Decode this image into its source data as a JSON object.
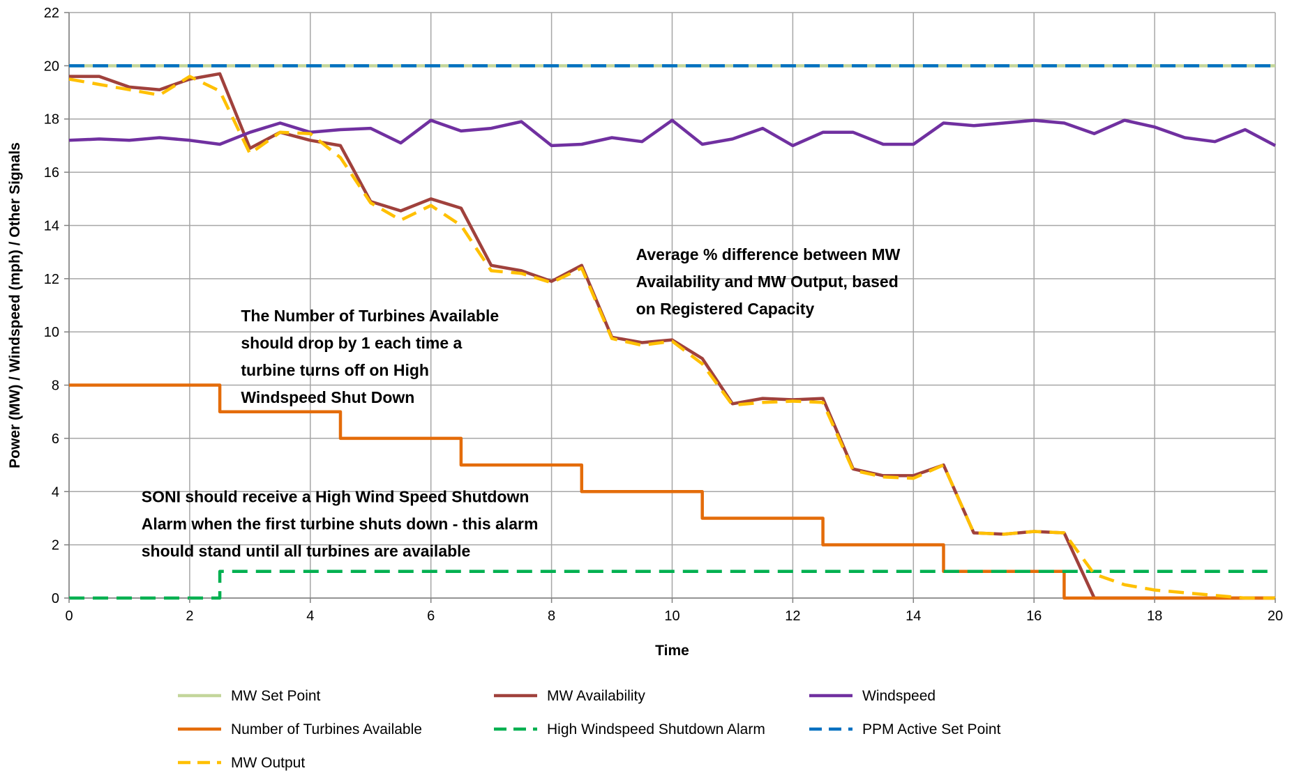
{
  "chart_data": {
    "type": "line",
    "title": "",
    "xlabel": "Time",
    "ylabel": "Power (MW) / Windspeed (mph) / Other Signals",
    "xlim": [
      0,
      20
    ],
    "ylim": [
      0,
      22
    ],
    "xticks": [
      0,
      2,
      4,
      6,
      8,
      10,
      12,
      14,
      16,
      18,
      20
    ],
    "yticks": [
      0,
      2,
      4,
      6,
      8,
      10,
      12,
      14,
      16,
      18,
      20,
      22
    ],
    "grid": true,
    "legend_position": "bottom",
    "series": [
      {
        "name": "MW Set Point",
        "color": "#c3d69b",
        "dash": "solid",
        "points": [
          [
            0,
            20
          ],
          [
            20,
            20
          ]
        ]
      },
      {
        "name": "MW Availability",
        "color": "#a0413c",
        "dash": "solid",
        "points": [
          [
            0,
            19.6
          ],
          [
            0.5,
            19.6
          ],
          [
            1,
            19.2
          ],
          [
            1.5,
            19.1
          ],
          [
            2,
            19.5
          ],
          [
            2.5,
            19.7
          ],
          [
            3,
            16.9
          ],
          [
            3.5,
            17.5
          ],
          [
            4,
            17.2
          ],
          [
            4.5,
            17.0
          ],
          [
            5,
            14.9
          ],
          [
            5.5,
            14.55
          ],
          [
            6,
            15.0
          ],
          [
            6.5,
            14.65
          ],
          [
            7,
            12.5
          ],
          [
            7.5,
            12.3
          ],
          [
            8,
            11.9
          ],
          [
            8.5,
            12.5
          ],
          [
            9,
            9.8
          ],
          [
            9.5,
            9.6
          ],
          [
            10,
            9.7
          ],
          [
            10.5,
            9.0
          ],
          [
            11,
            7.3
          ],
          [
            11.5,
            7.5
          ],
          [
            12,
            7.45
          ],
          [
            12.5,
            7.5
          ],
          [
            13,
            4.85
          ],
          [
            13.5,
            4.6
          ],
          [
            14,
            4.6
          ],
          [
            14.5,
            5.0
          ],
          [
            15,
            2.45
          ],
          [
            15.5,
            2.4
          ],
          [
            16,
            2.5
          ],
          [
            16.5,
            2.45
          ],
          [
            17,
            0.0
          ],
          [
            18,
            0.0
          ],
          [
            19,
            0.0
          ],
          [
            20,
            0.0
          ]
        ]
      },
      {
        "name": "Windspeed",
        "color": "#7030a0",
        "dash": "solid",
        "points": [
          [
            0,
            17.2
          ],
          [
            0.5,
            17.25
          ],
          [
            1,
            17.2
          ],
          [
            1.5,
            17.3
          ],
          [
            2,
            17.2
          ],
          [
            2.5,
            17.05
          ],
          [
            3,
            17.5
          ],
          [
            3.5,
            17.85
          ],
          [
            4,
            17.5
          ],
          [
            4.5,
            17.6
          ],
          [
            5,
            17.65
          ],
          [
            5.5,
            17.1
          ],
          [
            6,
            17.95
          ],
          [
            6.5,
            17.55
          ],
          [
            7,
            17.65
          ],
          [
            7.5,
            17.9
          ],
          [
            8,
            17.0
          ],
          [
            8.5,
            17.05
          ],
          [
            9,
            17.3
          ],
          [
            9.5,
            17.15
          ],
          [
            10,
            17.95
          ],
          [
            10.5,
            17.05
          ],
          [
            11,
            17.25
          ],
          [
            11.5,
            17.65
          ],
          [
            12,
            17.0
          ],
          [
            12.5,
            17.5
          ],
          [
            13,
            17.5
          ],
          [
            13.5,
            17.05
          ],
          [
            14,
            17.05
          ],
          [
            14.5,
            17.85
          ],
          [
            15,
            17.75
          ],
          [
            15.5,
            17.85
          ],
          [
            16,
            17.95
          ],
          [
            16.5,
            17.85
          ],
          [
            17,
            17.45
          ],
          [
            17.5,
            17.95
          ],
          [
            18,
            17.7
          ],
          [
            18.5,
            17.3
          ],
          [
            19,
            17.15
          ],
          [
            19.5,
            17.6
          ],
          [
            20,
            17.0
          ]
        ]
      },
      {
        "name": "Number of Turbines Available",
        "color": "#e46c0a",
        "dash": "solid",
        "step": true,
        "points": [
          [
            0,
            8
          ],
          [
            2.5,
            8
          ],
          [
            2.5,
            7
          ],
          [
            4.5,
            7
          ],
          [
            4.5,
            6
          ],
          [
            6.5,
            6
          ],
          [
            6.5,
            5
          ],
          [
            8.5,
            5
          ],
          [
            8.5,
            4
          ],
          [
            10.5,
            4
          ],
          [
            10.5,
            3
          ],
          [
            12.5,
            3
          ],
          [
            12.5,
            2
          ],
          [
            14.5,
            2
          ],
          [
            14.5,
            1
          ],
          [
            16.5,
            1
          ],
          [
            16.5,
            0
          ],
          [
            20,
            0
          ]
        ]
      },
      {
        "name": "High Windspeed Shutdown Alarm",
        "color": "#00b050",
        "dash": "dashed",
        "step": true,
        "points": [
          [
            0,
            0
          ],
          [
            2.5,
            0
          ],
          [
            2.5,
            1
          ],
          [
            20,
            1
          ]
        ]
      },
      {
        "name": "PPM Active Set Point",
        "color": "#0070c0",
        "dash": "dashed",
        "points": [
          [
            0,
            20
          ],
          [
            20,
            20
          ]
        ]
      },
      {
        "name": "MW Output",
        "color": "#ffc000",
        "dash": "dashed",
        "points": [
          [
            0,
            19.5
          ],
          [
            0.5,
            19.3
          ],
          [
            1,
            19.1
          ],
          [
            1.5,
            18.9
          ],
          [
            2,
            19.6
          ],
          [
            2.5,
            19.05
          ],
          [
            3,
            16.7
          ],
          [
            3.5,
            17.5
          ],
          [
            4,
            17.45
          ],
          [
            4.5,
            16.55
          ],
          [
            5,
            14.85
          ],
          [
            5.5,
            14.2
          ],
          [
            6,
            14.75
          ],
          [
            6.5,
            14.0
          ],
          [
            7,
            12.3
          ],
          [
            7.5,
            12.2
          ],
          [
            8,
            11.85
          ],
          [
            8.5,
            12.4
          ],
          [
            9,
            9.75
          ],
          [
            9.5,
            9.5
          ],
          [
            10,
            9.65
          ],
          [
            10.5,
            8.8
          ],
          [
            11,
            7.25
          ],
          [
            11.5,
            7.35
          ],
          [
            12,
            7.4
          ],
          [
            12.5,
            7.35
          ],
          [
            13,
            4.8
          ],
          [
            13.5,
            4.55
          ],
          [
            14,
            4.5
          ],
          [
            14.5,
            5.0
          ],
          [
            15,
            2.45
          ],
          [
            15.5,
            2.4
          ],
          [
            16,
            2.5
          ],
          [
            16.5,
            2.45
          ],
          [
            17,
            0.9
          ],
          [
            17.5,
            0.5
          ],
          [
            18,
            0.3
          ],
          [
            18.5,
            0.2
          ],
          [
            19,
            0.1
          ],
          [
            19.5,
            0.0
          ],
          [
            20,
            0.0
          ]
        ]
      }
    ],
    "annotations": [
      {
        "lines": [
          "Average % difference between MW",
          "Availability and MW Output, based",
          "on Registered Capacity"
        ],
        "anchor": [
          9.4,
          12.7
        ]
      },
      {
        "lines": [
          "The Number of Turbines Available",
          "should drop by 1 each time a",
          "turbine turns off on High",
          "Windspeed Shut Down"
        ],
        "anchor": [
          2.85,
          10.4
        ]
      },
      {
        "lines": [
          "SONI should receive a High Wind Speed Shutdown",
          "Alarm when the first turbine shuts down - this alarm",
          "should stand until all turbines are available"
        ],
        "anchor": [
          1.2,
          3.6
        ]
      }
    ]
  }
}
